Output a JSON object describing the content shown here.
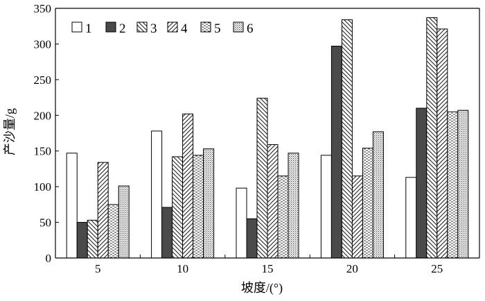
{
  "chart_data": {
    "type": "bar",
    "title": "",
    "xlabel": "坡度/(°)",
    "ylabel": "产沙量/g",
    "ylim": [
      0,
      350
    ],
    "yticks": [
      0,
      50,
      100,
      150,
      200,
      250,
      300,
      350
    ],
    "categories": [
      "5",
      "10",
      "15",
      "20",
      "25"
    ],
    "grid": false,
    "legend_position": "top-left",
    "series": [
      {
        "name": "1",
        "pattern": "white",
        "values": [
          147,
          178,
          98,
          144,
          113
        ]
      },
      {
        "name": "2",
        "pattern": "dark-solid",
        "values": [
          50,
          71,
          55,
          297,
          210
        ]
      },
      {
        "name": "3",
        "pattern": "back-diagonal",
        "values": [
          53,
          142,
          224,
          334,
          337
        ]
      },
      {
        "name": "4",
        "pattern": "forward-diagonal",
        "values": [
          134,
          202,
          159,
          115,
          321
        ]
      },
      {
        "name": "5",
        "pattern": "dashes",
        "values": [
          75,
          144,
          115,
          154,
          205
        ]
      },
      {
        "name": "6",
        "pattern": "dots",
        "values": [
          101,
          153,
          147,
          177,
          207
        ]
      }
    ],
    "colors": {
      "axis": "#000000",
      "dark_fill": "#4a4a4a",
      "pattern_ink": "#222222",
      "bar_edge": "#000000"
    }
  }
}
